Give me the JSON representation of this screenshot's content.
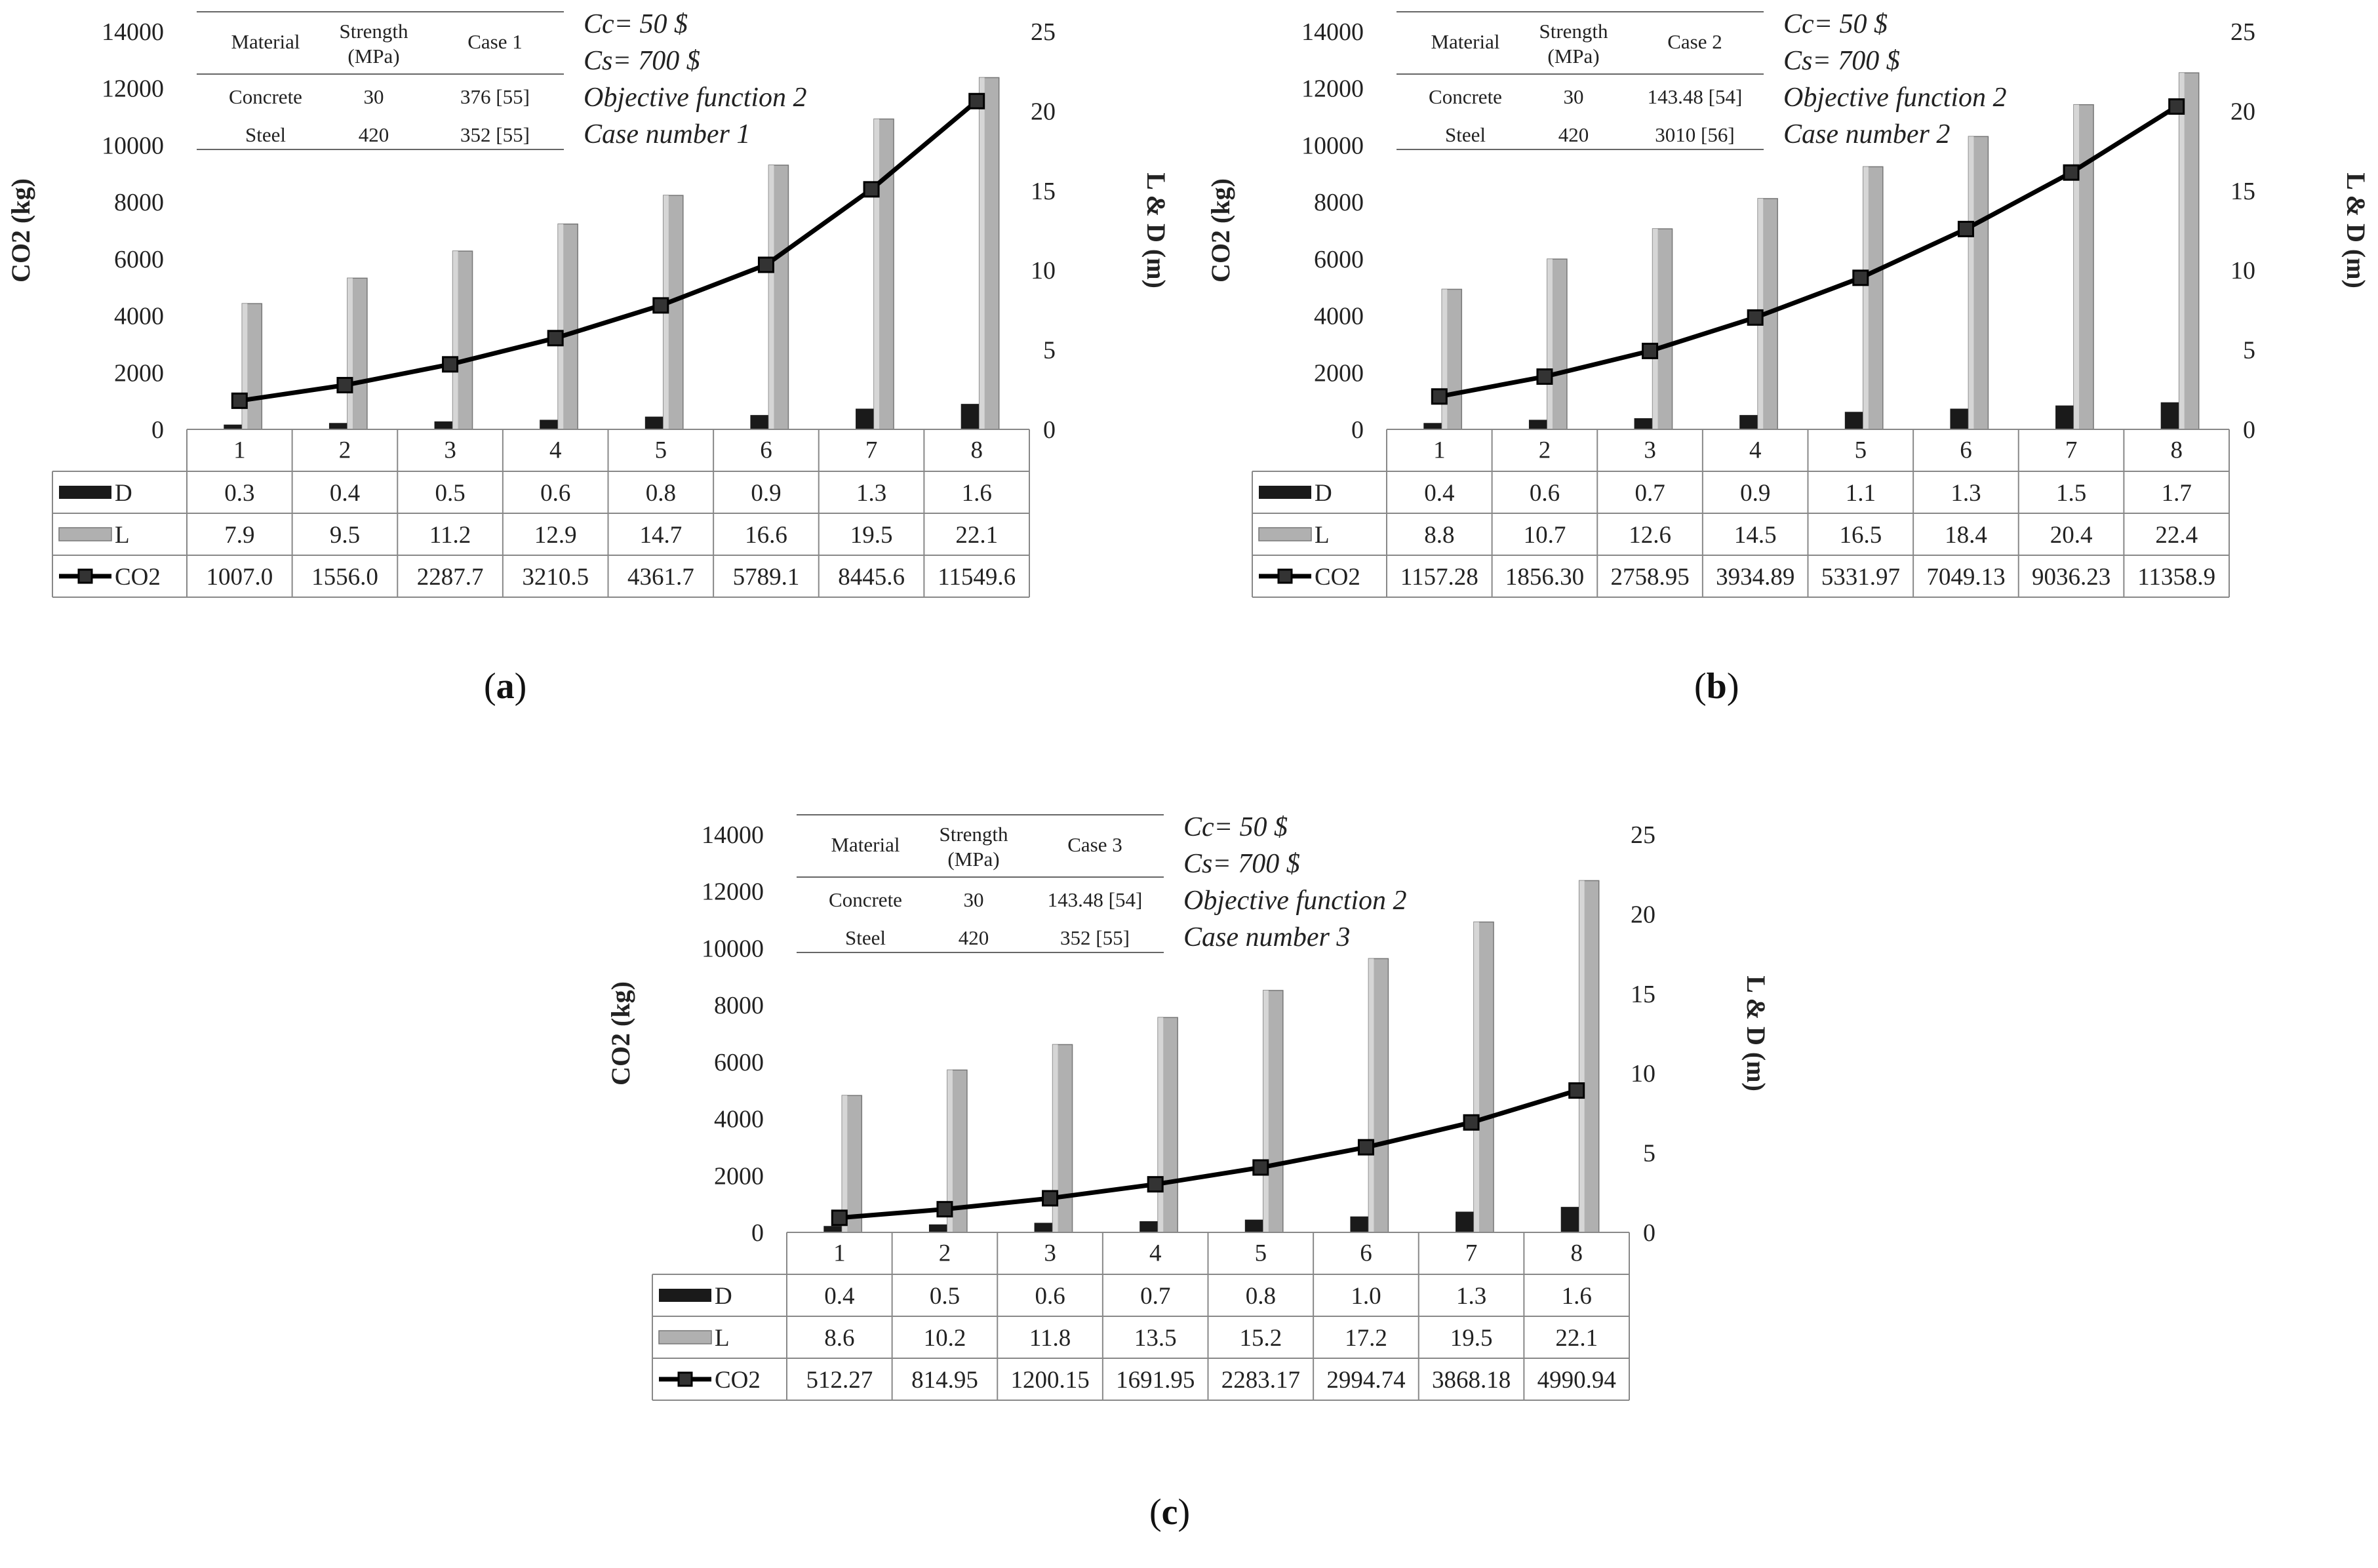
{
  "chart_data": [
    {
      "id": "a",
      "type": "bar+line",
      "caption": "a",
      "categories": [
        "1",
        "2",
        "3",
        "4",
        "5",
        "6",
        "7",
        "8"
      ],
      "series": [
        {
          "name": "D",
          "axis": "right",
          "kind": "bar",
          "values": [
            0.3,
            0.4,
            0.5,
            0.6,
            0.8,
            0.9,
            1.3,
            1.6
          ],
          "labels": [
            "0.3",
            "0.4",
            "0.5",
            "0.6",
            "0.8",
            "0.9",
            "1.3",
            "1.6"
          ]
        },
        {
          "name": "L",
          "axis": "right",
          "kind": "bar",
          "values": [
            7.9,
            9.5,
            11.2,
            12.9,
            14.7,
            16.6,
            19.5,
            22.1
          ],
          "labels": [
            "7.9",
            "9.5",
            "11.2",
            "12.9",
            "14.7",
            "16.6",
            "19.5",
            "22.1"
          ]
        },
        {
          "name": "CO2",
          "axis": "left",
          "kind": "line",
          "values": [
            1007.0,
            1556.0,
            2287.7,
            3210.5,
            4361.7,
            5789.1,
            8445.6,
            11549.6
          ],
          "labels": [
            "1007.0",
            "1556.0",
            "2287.7",
            "3210.5",
            "4361.7",
            "5789.1",
            "8445.6",
            "11549.6"
          ]
        }
      ],
      "ylabel": "CO2 (kg)",
      "y2label": "L & D (m)",
      "ylim": [
        0,
        14000
      ],
      "y2lim": [
        0,
        25
      ],
      "yticks": [
        "0",
        "2000",
        "4000",
        "6000",
        "8000",
        "10000",
        "12000",
        "14000"
      ],
      "y2ticks": [
        "0",
        "5",
        "10",
        "15",
        "20",
        "25"
      ],
      "info_table": {
        "headers": [
          "Material",
          "Strength",
          "(MPa)",
          "Case 1"
        ],
        "rows": [
          [
            "Concrete",
            "30",
            "376  [55]"
          ],
          [
            "Steel",
            "420",
            "352  [55]"
          ]
        ]
      },
      "notes": [
        "Cc= 50 $",
        "Cs= 700 $",
        "Objective function 2",
        "Case number 1"
      ]
    },
    {
      "id": "b",
      "type": "bar+line",
      "caption": "b",
      "categories": [
        "1",
        "2",
        "3",
        "4",
        "5",
        "6",
        "7",
        "8"
      ],
      "series": [
        {
          "name": "D",
          "axis": "right",
          "kind": "bar",
          "values": [
            0.4,
            0.6,
            0.7,
            0.9,
            1.1,
            1.3,
            1.5,
            1.7
          ],
          "labels": [
            "0.4",
            "0.6",
            "0.7",
            "0.9",
            "1.1",
            "1.3",
            "1.5",
            "1.7"
          ]
        },
        {
          "name": "L",
          "axis": "right",
          "kind": "bar",
          "values": [
            8.8,
            10.7,
            12.6,
            14.5,
            16.5,
            18.4,
            20.4,
            22.4
          ],
          "labels": [
            "8.8",
            "10.7",
            "12.6",
            "14.5",
            "16.5",
            "18.4",
            "20.4",
            "22.4"
          ]
        },
        {
          "name": "CO2",
          "axis": "left",
          "kind": "line",
          "values": [
            1157.28,
            1856.3,
            2758.95,
            3934.89,
            5331.97,
            7049.13,
            9036.23,
            11358.9
          ],
          "labels": [
            "1157.28",
            "1856.30",
            "2758.95",
            "3934.89",
            "5331.97",
            "7049.13",
            "9036.23",
            "11358.9"
          ]
        }
      ],
      "ylabel": "CO2 (kg)",
      "y2label": "L & D (m)",
      "ylim": [
        0,
        14000
      ],
      "y2lim": [
        0,
        25
      ],
      "yticks": [
        "0",
        "2000",
        "4000",
        "6000",
        "8000",
        "10000",
        "12000",
        "14000"
      ],
      "y2ticks": [
        "0",
        "5",
        "10",
        "15",
        "20",
        "25"
      ],
      "info_table": {
        "headers": [
          "Material",
          "Strength",
          "(MPa)",
          "Case 2"
        ],
        "rows": [
          [
            "Concrete",
            "30",
            "143.48  [54]"
          ],
          [
            "Steel",
            "420",
            "3010   [56]"
          ]
        ]
      },
      "notes": [
        "Cc= 50 $",
        "Cs= 700 $",
        "Objective function 2",
        "Case number 2"
      ]
    },
    {
      "id": "c",
      "type": "bar+line",
      "caption": "c",
      "categories": [
        "1",
        "2",
        "3",
        "4",
        "5",
        "6",
        "7",
        "8"
      ],
      "series": [
        {
          "name": "D",
          "axis": "right",
          "kind": "bar",
          "values": [
            0.4,
            0.5,
            0.6,
            0.7,
            0.8,
            1.0,
            1.3,
            1.6
          ],
          "labels": [
            "0.4",
            "0.5",
            "0.6",
            "0.7",
            "0.8",
            "1.0",
            "1.3",
            "1.6"
          ]
        },
        {
          "name": "L",
          "axis": "right",
          "kind": "bar",
          "values": [
            8.6,
            10.2,
            11.8,
            13.5,
            15.2,
            17.2,
            19.5,
            22.1
          ],
          "labels": [
            "8.6",
            "10.2",
            "11.8",
            "13.5",
            "15.2",
            "17.2",
            "19.5",
            "22.1"
          ]
        },
        {
          "name": "CO2",
          "axis": "left",
          "kind": "line",
          "values": [
            512.27,
            814.95,
            1200.15,
            1691.95,
            2283.17,
            2994.74,
            3868.18,
            4990.94
          ],
          "labels": [
            "512.27",
            "814.95",
            "1200.15",
            "1691.95",
            "2283.17",
            "2994.74",
            "3868.18",
            "4990.94"
          ]
        }
      ],
      "ylabel": "CO2 (kg)",
      "y2label": "L & D (m)",
      "ylim": [
        0,
        14000
      ],
      "y2lim": [
        0,
        25
      ],
      "yticks": [
        "0",
        "2000",
        "4000",
        "6000",
        "8000",
        "10000",
        "12000",
        "14000"
      ],
      "y2ticks": [
        "0",
        "5",
        "10",
        "15",
        "20",
        "25"
      ],
      "info_table": {
        "headers": [
          "Material",
          "Strength",
          "(MPa)",
          "Case 3"
        ],
        "rows": [
          [
            "Concrete",
            "30",
            "143.48  [54]"
          ],
          [
            "Steel",
            "420",
            "352      [55]"
          ]
        ]
      },
      "notes": [
        "Cc= 50 $",
        "Cs= 700 $",
        "Objective function 2",
        "Case number 3"
      ]
    }
  ],
  "colors": {
    "L_bar": "#b0b0b0",
    "D_bar": "#1a1a1a",
    "line": "#000000",
    "axis": "#888888"
  }
}
